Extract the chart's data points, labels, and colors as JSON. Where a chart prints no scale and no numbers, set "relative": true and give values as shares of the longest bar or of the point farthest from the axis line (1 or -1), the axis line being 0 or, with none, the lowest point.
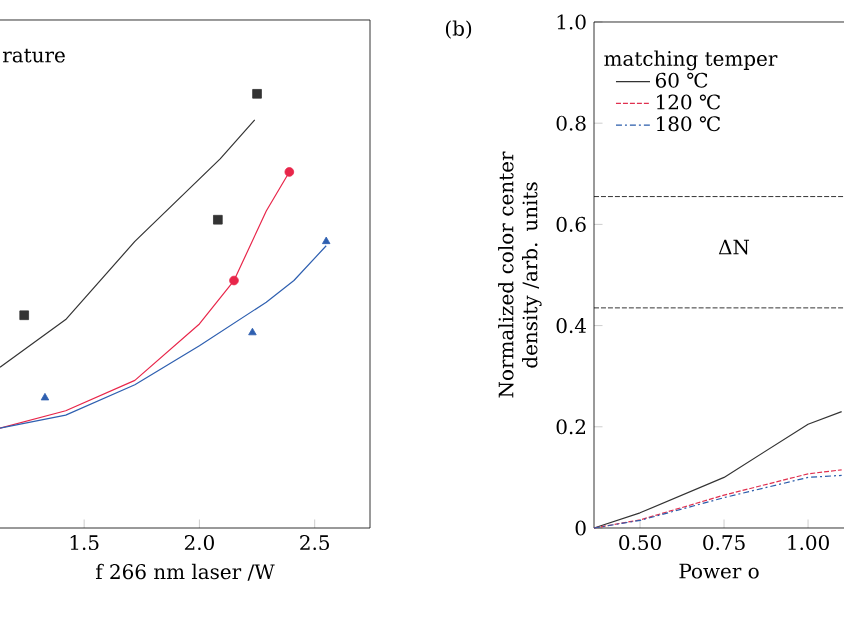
{
  "chart_data": [
    {
      "type": "scatter",
      "relative": true,
      "xlabel": "f 266 nm laser /W",
      "xlim": [
        1.135,
        2.74
      ],
      "xticks": [
        {
          "value": 1.5,
          "label": "1.5"
        },
        {
          "value": 2.0,
          "label": "2.0"
        },
        {
          "value": 2.5,
          "label": "2.5"
        }
      ],
      "annotations": [
        "rature"
      ],
      "series": [
        {
          "type": "scatter",
          "marker": "square",
          "color": "#333333",
          "x": [
            1.24,
            2.08,
            2.25
          ],
          "values": [
            0.49,
            0.71,
            1.0
          ]
        },
        {
          "type": "scatter",
          "marker": "circle",
          "color": "#e8264a",
          "x": [
            2.15,
            2.39
          ],
          "values": [
            0.57,
            0.82
          ]
        },
        {
          "type": "scatter",
          "marker": "triangle",
          "color": "#2e5fb0",
          "x": [
            1.33,
            2.23,
            2.55
          ],
          "values": [
            0.3,
            0.45,
            0.66
          ]
        },
        {
          "type": "line",
          "color": "#333333",
          "x": [
            1.135,
            1.42,
            1.72,
            2.09,
            2.24
          ],
          "values": [
            0.37,
            0.48,
            0.66,
            0.85,
            0.94
          ]
        },
        {
          "type": "line",
          "color": "#e8264a",
          "x": [
            1.135,
            1.42,
            1.72,
            2.0,
            2.15,
            2.29,
            2.39
          ],
          "values": [
            0.23,
            0.27,
            0.34,
            0.47,
            0.57,
            0.73,
            0.82
          ]
        },
        {
          "type": "line",
          "color": "#2e5fb0",
          "x": [
            1.135,
            1.42,
            1.72,
            2.0,
            2.29,
            2.41,
            2.55
          ],
          "values": [
            0.23,
            0.26,
            0.33,
            0.42,
            0.52,
            0.57,
            0.65
          ]
        }
      ]
    },
    {
      "type": "line",
      "xlabel": "Power o",
      "ylabel": "Normalized color center density /arb. units",
      "legend_title": "matching temper",
      "legend": "top left",
      "xlim": [
        0.363,
        1.107
      ],
      "ylim": [
        0,
        1.0
      ],
      "xticks": [
        {
          "value": 0.5,
          "label": "0.50"
        },
        {
          "value": 0.75,
          "label": "0.75"
        },
        {
          "value": 1.0,
          "label": "1.00"
        }
      ],
      "yticks": [
        0,
        {
          "value": 0.2,
          "label": "0.2"
        },
        {
          "value": 0.4,
          "label": "0.4"
        },
        {
          "value": 0.6,
          "label": "0.6"
        },
        {
          "value": 0.8,
          "label": "0.8"
        },
        {
          "value": 1.0,
          "label": "1.0"
        }
      ],
      "ref_lines": [
        {
          "axis": "y",
          "value": 0.655,
          "line_style": "dashed"
        },
        {
          "axis": "y",
          "value": 0.435,
          "line_style": "dashed"
        }
      ],
      "annotations": [
        "(b)",
        "ΔN"
      ],
      "x": [
        0.363,
        0.5,
        0.75,
        1.0,
        1.1
      ],
      "series": [
        {
          "name": "60 ℃",
          "color": "#333333",
          "line_style": "solid",
          "values": [
            0,
            0.03,
            0.1,
            0.205,
            0.23
          ]
        },
        {
          "name": "120 ℃",
          "color": "#e0304f",
          "line_style": "dashed",
          "values": [
            0,
            0.016,
            0.065,
            0.107,
            0.115
          ]
        },
        {
          "name": "180 ℃",
          "color": "#2a5cab",
          "line_style": "dashdot",
          "values": [
            0,
            0.015,
            0.06,
            0.1,
            0.104
          ]
        }
      ]
    }
  ]
}
